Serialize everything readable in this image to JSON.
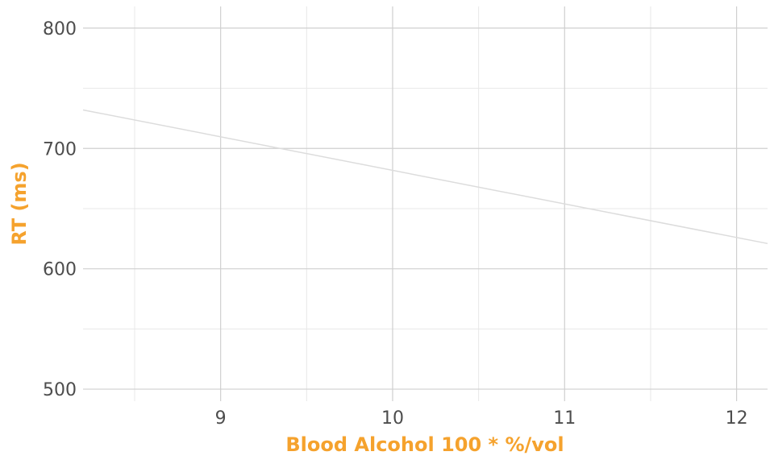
{
  "chart_data": {
    "type": "line",
    "xlabel": "Blood Alcohol 100 * %/vol",
    "ylabel": "RT (ms)",
    "xlim": [
      8.2,
      12.18
    ],
    "ylim": [
      490,
      818
    ],
    "x_ticks": [
      9,
      10,
      11,
      12
    ],
    "y_ticks": [
      500,
      600,
      700,
      800
    ],
    "x_minor_ticks": [
      8.5,
      9.5,
      10.5,
      11.5
    ],
    "y_minor_ticks": [
      550,
      650,
      750
    ],
    "grid": true,
    "axis_title_color": "#F5A22D",
    "series": [
      {
        "color": "#dcdcdc",
        "x": [
          8.2,
          12.18
        ],
        "y": [
          732,
          621
        ]
      }
    ]
  }
}
